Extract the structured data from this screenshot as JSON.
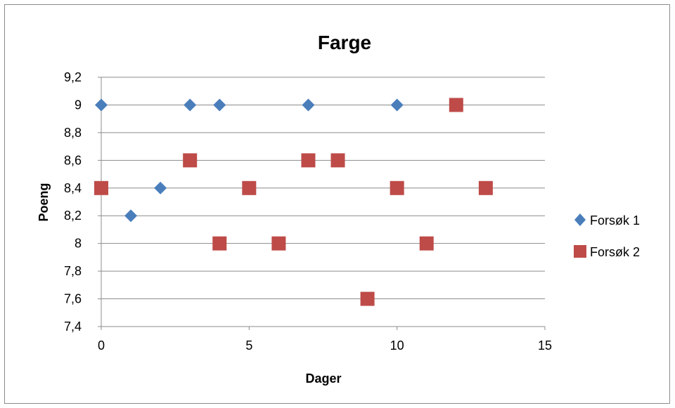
{
  "chart_data": {
    "type": "scatter",
    "title": "Farge",
    "xlabel": "Dager",
    "ylabel": "Poeng",
    "xlim": [
      0,
      15
    ],
    "ylim": [
      7.4,
      9.2
    ],
    "xticks": [
      0,
      5,
      10,
      15
    ],
    "xtick_labels": [
      "0",
      "5",
      "10",
      "15"
    ],
    "yticks": [
      7.4,
      7.6,
      7.8,
      8.0,
      8.2,
      8.4,
      8.6,
      8.8,
      9.0,
      9.2
    ],
    "ytick_labels": [
      "7,4",
      "7,6",
      "7,8",
      "8",
      "8,2",
      "8,4",
      "8,6",
      "8,8",
      "9",
      "9,2"
    ],
    "grid": "horizontal",
    "legend_position": "right",
    "series": [
      {
        "name": "Forsøk 1",
        "marker": "diamond",
        "color": "#4a7ebb",
        "points": [
          [
            0,
            9.0
          ],
          [
            1,
            8.2
          ],
          [
            2,
            8.4
          ],
          [
            3,
            9.0
          ],
          [
            4,
            9.0
          ],
          [
            7,
            9.0
          ],
          [
            10,
            9.0
          ]
        ]
      },
      {
        "name": "Forsøk 2",
        "marker": "square",
        "color": "#be4b48",
        "points": [
          [
            0,
            8.4
          ],
          [
            3,
            8.6
          ],
          [
            4,
            8.0
          ],
          [
            5,
            8.4
          ],
          [
            6,
            8.0
          ],
          [
            7,
            8.6
          ],
          [
            8,
            8.6
          ],
          [
            9,
            7.6
          ],
          [
            10,
            8.4
          ],
          [
            11,
            8.0
          ],
          [
            12,
            9.0
          ],
          [
            13,
            8.4
          ]
        ]
      }
    ]
  }
}
